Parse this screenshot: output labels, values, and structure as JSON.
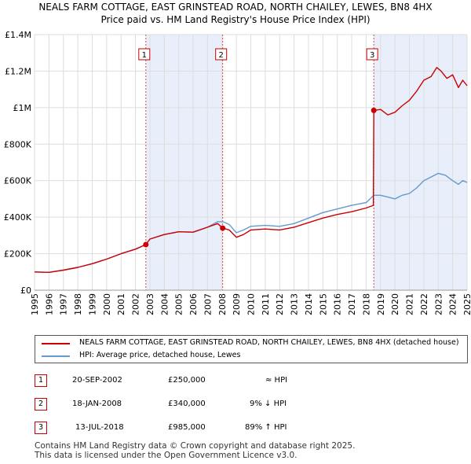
{
  "title": {
    "line1": "NEALS FARM COTTAGE, EAST GRINSTEAD ROAD, NORTH CHAILEY, LEWES, BN8 4HX",
    "line2": "Price paid vs. HM Land Registry's House Price Index (HPI)"
  },
  "chart_data": {
    "type": "line",
    "title": "Price paid vs. HM Land Registry's House Price Index (HPI)",
    "xlabel": "",
    "ylabel": "",
    "xlim": [
      1995,
      2025
    ],
    "ylim": [
      0,
      1400000
    ],
    "y_ticks": [
      {
        "value": 0,
        "label": "£0"
      },
      {
        "value": 200000,
        "label": "£200K"
      },
      {
        "value": 400000,
        "label": "£400K"
      },
      {
        "value": 600000,
        "label": "£600K"
      },
      {
        "value": 800000,
        "label": "£800K"
      },
      {
        "value": 1000000,
        "label": "£1M"
      },
      {
        "value": 1200000,
        "label": "£1.2M"
      },
      {
        "value": 1400000,
        "label": "£1.4M"
      }
    ],
    "x_ticks": [
      "1995",
      "1996",
      "1997",
      "1998",
      "1999",
      "2000",
      "2001",
      "2002",
      "2003",
      "2004",
      "2005",
      "2006",
      "2007",
      "2008",
      "2009",
      "2010",
      "2011",
      "2012",
      "2013",
      "2014",
      "2015",
      "2016",
      "2017",
      "2018",
      "2019",
      "2020",
      "2021",
      "2022",
      "2023",
      "2024",
      "2025"
    ],
    "shaded_ranges": [
      [
        2002.72,
        2008.05
      ],
      [
        2018.53,
        2025.0
      ]
    ],
    "series": [
      {
        "name": "NEALS FARM COTTAGE, EAST GRINSTEAD ROAD, NORTH CHAILEY, LEWES, BN8 4HX (detached house)",
        "color": "#cc0000",
        "x": [
          1995,
          1996,
          1997,
          1998,
          1999,
          2000,
          2001,
          2002,
          2002.72,
          2003,
          2004,
          2005,
          2006,
          2007,
          2007.7,
          2008.05,
          2008.5,
          2009,
          2009.5,
          2010,
          2011,
          2012,
          2013,
          2014,
          2015,
          2016,
          2017,
          2018,
          2018.5,
          2018.53,
          2019,
          2019.5,
          2020,
          2020.5,
          2021,
          2021.5,
          2022,
          2022.5,
          2022.9,
          2023.2,
          2023.6,
          2024,
          2024.4,
          2024.7,
          2025
        ],
        "y": [
          100000,
          98000,
          110000,
          125000,
          145000,
          170000,
          200000,
          225000,
          250000,
          280000,
          305000,
          320000,
          318000,
          345000,
          365000,
          340000,
          330000,
          290000,
          305000,
          330000,
          335000,
          330000,
          345000,
          370000,
          395000,
          415000,
          430000,
          450000,
          465000,
          985000,
          990000,
          960000,
          975000,
          1010000,
          1040000,
          1090000,
          1150000,
          1170000,
          1220000,
          1200000,
          1160000,
          1180000,
          1110000,
          1150000,
          1120000
        ]
      },
      {
        "name": "HPI: Average price, detached house, Lewes",
        "color": "#6699cc",
        "x": [
          1995,
          1996,
          1997,
          1998,
          1999,
          2000,
          2001,
          2002,
          2002.72,
          2003,
          2004,
          2005,
          2006,
          2007,
          2007.7,
          2008.05,
          2008.5,
          2009,
          2009.5,
          2010,
          2011,
          2012,
          2013,
          2014,
          2015,
          2016,
          2017,
          2018,
          2018.53,
          2019,
          2019.5,
          2020,
          2020.5,
          2021,
          2021.5,
          2022,
          2022.5,
          2023,
          2023.5,
          2024,
          2024.4,
          2024.7,
          2025
        ],
        "y": [
          100000,
          98000,
          110000,
          125000,
          145000,
          170000,
          200000,
          225000,
          250000,
          280000,
          305000,
          320000,
          318000,
          345000,
          375000,
          375000,
          360000,
          315000,
          330000,
          350000,
          355000,
          350000,
          365000,
          395000,
          425000,
          445000,
          465000,
          480000,
          520000,
          520000,
          510000,
          500000,
          520000,
          530000,
          560000,
          600000,
          620000,
          640000,
          630000,
          600000,
          580000,
          600000,
          590000
        ]
      }
    ],
    "markers": [
      {
        "label": "1",
        "x": 2002.72,
        "y": 250000
      },
      {
        "label": "2",
        "x": 2008.05,
        "y": 340000
      },
      {
        "label": "3",
        "x": 2018.53,
        "y": 985000
      }
    ]
  },
  "legend": {
    "price_paid": "NEALS FARM COTTAGE, EAST GRINSTEAD ROAD, NORTH CHAILEY, LEWES, BN8 4HX (detached house)",
    "hpi": "HPI: Average price, detached house, Lewes"
  },
  "sales": [
    {
      "num": "1",
      "date": "20-SEP-2002",
      "price": "£250,000",
      "hpi": "≈ HPI"
    },
    {
      "num": "2",
      "date": "18-JAN-2008",
      "price": "£340,000",
      "hpi": "9% ↓ HPI"
    },
    {
      "num": "3",
      "date": "13-JUL-2018",
      "price": "£985,000",
      "hpi": "89% ↑ HPI"
    }
  ],
  "footer": {
    "line1": "Contains HM Land Registry data © Crown copyright and database right 2025.",
    "line2": "This data is licensed under the Open Government Licence v3.0."
  },
  "colors": {
    "price_line": "#cc0000",
    "hpi_line": "#6699cc",
    "shade": "#e8eefa",
    "grid": "#dddddd",
    "marker_border": "#cc0000"
  }
}
